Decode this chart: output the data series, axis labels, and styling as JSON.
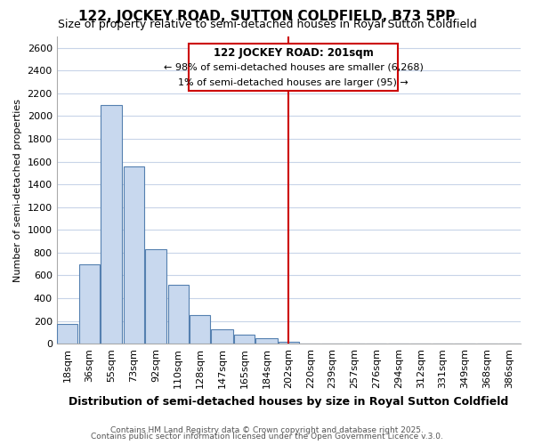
{
  "title": "122, JOCKEY ROAD, SUTTON COLDFIELD, B73 5PP",
  "subtitle": "Size of property relative to semi-detached houses in Royal Sutton Coldfield",
  "xlabel": "Distribution of semi-detached houses by size in Royal Sutton Coldfield",
  "ylabel": "Number of semi-detached properties",
  "footer1": "Contains HM Land Registry data © Crown copyright and database right 2025.",
  "footer2": "Contains public sector information licensed under the Open Government Licence v.3.0.",
  "annotation_title": "122 JOCKEY ROAD: 201sqm",
  "annotation_line1": "← 98% of semi-detached houses are smaller (6,268)",
  "annotation_line2": "1% of semi-detached houses are larger (95) →",
  "marker_value": 202,
  "categories": [
    "18sqm",
    "36sqm",
    "55sqm",
    "73sqm",
    "92sqm",
    "110sqm",
    "128sqm",
    "147sqm",
    "165sqm",
    "184sqm",
    "202sqm",
    "220sqm",
    "239sqm",
    "257sqm",
    "276sqm",
    "294sqm",
    "312sqm",
    "331sqm",
    "349sqm",
    "368sqm",
    "386sqm"
  ],
  "bin_edges": [
    9,
    27,
    45,
    64,
    82,
    101,
    119,
    137,
    156,
    174,
    193,
    211,
    229,
    247,
    266,
    284,
    303,
    321,
    339,
    358,
    376,
    395
  ],
  "values": [
    175,
    700,
    2100,
    1560,
    830,
    520,
    255,
    130,
    80,
    50,
    20,
    0,
    0,
    0,
    0,
    0,
    0,
    0,
    0,
    0,
    0
  ],
  "bar_color": "#c8d8ee",
  "bar_edge_color": "#5580b0",
  "marker_color": "#cc0000",
  "annotation_bg": "#ffffff",
  "annotation_border": "#cc0000",
  "background_color": "#ffffff",
  "plot_bg_color": "#ffffff",
  "grid_color": "#c8d4e8",
  "ylim": [
    0,
    2700
  ],
  "yticks": [
    0,
    200,
    400,
    600,
    800,
    1000,
    1200,
    1400,
    1600,
    1800,
    2000,
    2200,
    2400,
    2600
  ],
  "title_fontsize": 11,
  "subtitle_fontsize": 9,
  "xlabel_fontsize": 9,
  "ylabel_fontsize": 8,
  "tick_fontsize": 8,
  "annotation_title_fontsize": 8.5,
  "annotation_line_fontsize": 8,
  "footer_fontsize": 6.5
}
